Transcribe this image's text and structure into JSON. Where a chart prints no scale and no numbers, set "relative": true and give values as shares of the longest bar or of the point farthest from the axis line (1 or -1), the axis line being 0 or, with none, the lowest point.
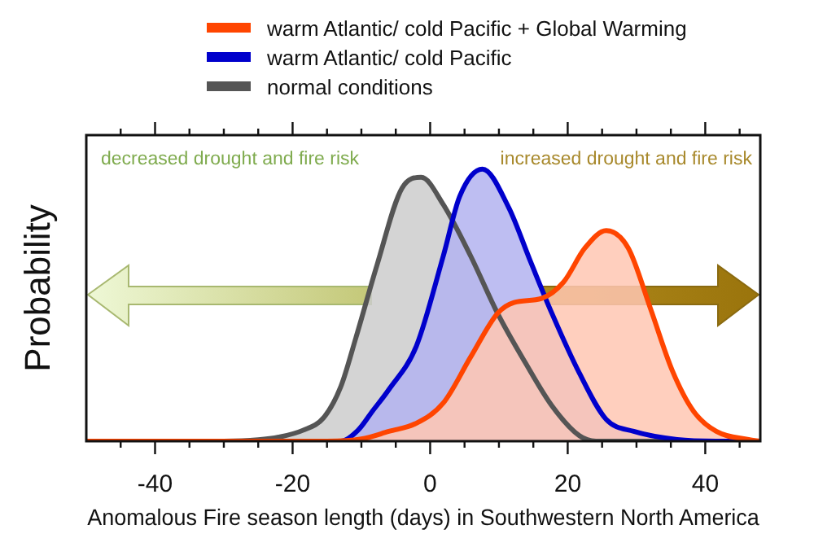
{
  "chart_data": {
    "type": "area",
    "relative": true,
    "xlabel": "Anomalous Fire season length (days) in Southwestern North America",
    "ylabel": "Probability",
    "xlim": [
      -50,
      48
    ],
    "xticks": [
      {
        "value": -45,
        "label": null
      },
      -40,
      {
        "value": -35,
        "label": null
      },
      {
        "value": -30,
        "label": null
      },
      {
        "value": -25,
        "label": null
      },
      -20,
      {
        "value": -15,
        "label": null
      },
      {
        "value": -10,
        "label": null
      },
      {
        "value": -5,
        "label": null
      },
      0,
      {
        "value": 5,
        "label": null
      },
      {
        "value": 10,
        "label": null
      },
      {
        "value": 15,
        "label": null
      },
      20,
      {
        "value": 25,
        "label": null
      },
      {
        "value": 30,
        "label": null
      },
      {
        "value": 35,
        "label": null
      },
      40,
      {
        "value": 45,
        "label": null
      }
    ],
    "legend": "top",
    "annotations": [
      "decreased drought and fire risk",
      "increased drought and fire risk"
    ],
    "series": [
      {
        "name": "warm Atlantic/ cold Pacific + Global Warming",
        "color": "#ff4500",
        "x": [
          -50,
          -15,
          -10,
          -6,
          -2,
          1.9,
          5.9,
          9.8,
          12.2,
          16.2,
          19.4,
          22.5,
          25.6,
          28.8,
          32,
          35.2,
          38.3,
          41.6,
          46.3,
          48
        ],
        "values": [
          0,
          0,
          0.008,
          0.036,
          0.066,
          0.14,
          0.31,
          0.47,
          0.51,
          0.525,
          0.585,
          0.71,
          0.774,
          0.71,
          0.49,
          0.26,
          0.11,
          0.036,
          0.006,
          0
        ]
      },
      {
        "name": "warm Atlantic/ cold Pacific",
        "color": "#0000cc",
        "x": [
          -50,
          -13,
          -10.5,
          -8.4,
          -6,
          -2,
          1.9,
          4.3,
          7.6,
          11.4,
          14.6,
          17.7,
          21.7,
          25.6,
          29.6,
          35.9,
          41.6,
          48
        ],
        "values": [
          0,
          0,
          0.04,
          0.11,
          0.19,
          0.35,
          0.68,
          0.9,
          1,
          0.86,
          0.66,
          0.47,
          0.25,
          0.08,
          0.036,
          0.006,
          0,
          0
        ]
      },
      {
        "name": "normal conditions",
        "color": "#555555",
        "x": [
          -50,
          -30,
          -25,
          -22,
          -18.5,
          -15.5,
          -13,
          -10.8,
          -7.7,
          -4.1,
          -1.3,
          1.9,
          5.9,
          9.8,
          13.8,
          17.7,
          21.7,
          24.1,
          30,
          48
        ],
        "values": [
          0,
          0,
          0.005,
          0.015,
          0.04,
          0.086,
          0.2,
          0.38,
          0.65,
          0.93,
          0.97,
          0.87,
          0.68,
          0.47,
          0.29,
          0.13,
          0.02,
          0,
          0,
          0
        ]
      }
    ]
  }
}
